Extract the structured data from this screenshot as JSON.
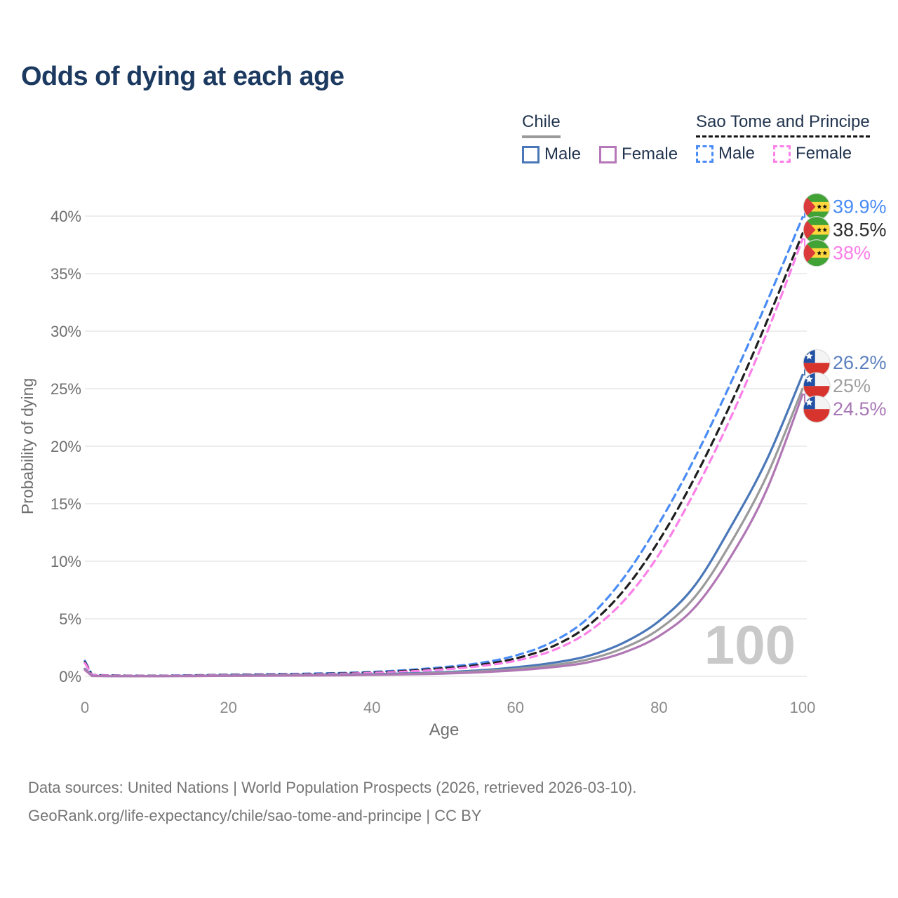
{
  "title": "Odds of dying at each age",
  "legend": {
    "groups": [
      {
        "id": "chile",
        "title": "Chile",
        "underline": "solid",
        "underline_color": "#9a9a9a",
        "items": [
          {
            "label": "Male",
            "color": "#4a77b8",
            "dash": false
          },
          {
            "label": "Female",
            "color": "#b678b8",
            "dash": false
          }
        ]
      },
      {
        "id": "sao-tome-and-principe",
        "title": "Sao Tome and Principe",
        "underline": "dashed",
        "underline_color": "#141414",
        "items": [
          {
            "label": "Male",
            "color": "#4a8cf5",
            "dash": true
          },
          {
            "label": "Female",
            "color": "#fb80e8",
            "dash": true
          }
        ]
      }
    ]
  },
  "watermark": "100",
  "footer": {
    "line1": "Data sources: United Nations | World Population Prospects (2026, retrieved 2026-03-10).",
    "line2": "GeoRank.org/life-expectancy/chile/sao-tome-and-principe | CC BY"
  },
  "chart_data": {
    "type": "line",
    "title": "Odds of dying at each age",
    "xlabel": "Age",
    "ylabel": "Probability of dying",
    "xlim": [
      0,
      100
    ],
    "ylim_percent": [
      0,
      40
    ],
    "grid": "horizontal",
    "x_ticks": [
      {
        "v": 0,
        "label": "0"
      },
      {
        "v": 20,
        "label": "20"
      },
      {
        "v": 40,
        "label": "40"
      },
      {
        "v": 60,
        "label": "60"
      },
      {
        "v": 80,
        "label": "80"
      },
      {
        "v": 100,
        "label": "100"
      }
    ],
    "y_ticks": [
      {
        "v": 0,
        "label": "0%"
      },
      {
        "v": 5,
        "label": "5%"
      },
      {
        "v": 10,
        "label": "10%"
      },
      {
        "v": 15,
        "label": "15%"
      },
      {
        "v": 20,
        "label": "20%"
      },
      {
        "v": 25,
        "label": "25%"
      },
      {
        "v": 30,
        "label": "30%"
      },
      {
        "v": 35,
        "label": "35%"
      },
      {
        "v": 40,
        "label": "40%"
      }
    ],
    "series": [
      {
        "name": "Sao Tome and Principe — Male",
        "country": "Sao Tome and Principe",
        "sex": "male",
        "style": "dashed",
        "color": "#4a8cf5",
        "flag": "sao-tome-and-principe",
        "end_label": "39.9%",
        "end_label_color": "#4a8cf5",
        "points": [
          [
            0,
            1.35
          ],
          [
            1,
            0.12
          ],
          [
            5,
            0.07
          ],
          [
            10,
            0.06
          ],
          [
            15,
            0.09
          ],
          [
            20,
            0.14
          ],
          [
            25,
            0.18
          ],
          [
            30,
            0.22
          ],
          [
            35,
            0.28
          ],
          [
            40,
            0.38
          ],
          [
            45,
            0.55
          ],
          [
            50,
            0.8
          ],
          [
            55,
            1.15
          ],
          [
            60,
            1.8
          ],
          [
            65,
            2.95
          ],
          [
            70,
            5.0
          ],
          [
            75,
            8.5
          ],
          [
            80,
            13.3
          ],
          [
            85,
            19.0
          ],
          [
            90,
            25.5
          ],
          [
            95,
            32.5
          ],
          [
            100,
            39.9
          ]
        ]
      },
      {
        "name": "Sao Tome and Principe — Both sexes",
        "country": "Sao Tome and Principe",
        "sex": "both",
        "style": "dashed",
        "color": "#1f1f1f",
        "flag": "sao-tome-and-principe",
        "end_label": "38.5%",
        "end_label_color": "#2e2e2e",
        "points": [
          [
            0,
            1.25
          ],
          [
            1,
            0.11
          ],
          [
            5,
            0.06
          ],
          [
            10,
            0.05
          ],
          [
            15,
            0.08
          ],
          [
            20,
            0.12
          ],
          [
            25,
            0.15
          ],
          [
            30,
            0.19
          ],
          [
            35,
            0.24
          ],
          [
            40,
            0.33
          ],
          [
            45,
            0.48
          ],
          [
            50,
            0.7
          ],
          [
            55,
            1.0
          ],
          [
            60,
            1.55
          ],
          [
            65,
            2.55
          ],
          [
            70,
            4.35
          ],
          [
            75,
            7.4
          ],
          [
            80,
            11.8
          ],
          [
            85,
            17.3
          ],
          [
            90,
            23.7
          ],
          [
            95,
            30.8
          ],
          [
            100,
            38.5
          ]
        ]
      },
      {
        "name": "Sao Tome and Principe — Female",
        "country": "Sao Tome and Principe",
        "sex": "female",
        "style": "dashed",
        "color": "#fb80e8",
        "flag": "sao-tome-and-principe",
        "end_label": "38%",
        "end_label_color": "#fb80e8",
        "points": [
          [
            0,
            1.15
          ],
          [
            1,
            0.1
          ],
          [
            5,
            0.05
          ],
          [
            10,
            0.045
          ],
          [
            15,
            0.07
          ],
          [
            20,
            0.1
          ],
          [
            25,
            0.13
          ],
          [
            30,
            0.16
          ],
          [
            35,
            0.21
          ],
          [
            40,
            0.29
          ],
          [
            45,
            0.42
          ],
          [
            50,
            0.6
          ],
          [
            55,
            0.88
          ],
          [
            60,
            1.35
          ],
          [
            65,
            2.2
          ],
          [
            70,
            3.8
          ],
          [
            75,
            6.5
          ],
          [
            80,
            10.6
          ],
          [
            85,
            16.1
          ],
          [
            90,
            22.5
          ],
          [
            95,
            29.8
          ],
          [
            100,
            38.0
          ]
        ]
      },
      {
        "name": "Chile — Male",
        "country": "Chile",
        "sex": "male",
        "style": "solid",
        "color": "#4a77b8",
        "flag": "chile",
        "end_label": "26.2%",
        "end_label_color": "#5b7fbe",
        "points": [
          [
            0,
            0.65
          ],
          [
            1,
            0.04
          ],
          [
            5,
            0.02
          ],
          [
            10,
            0.02
          ],
          [
            15,
            0.04
          ],
          [
            20,
            0.07
          ],
          [
            25,
            0.09
          ],
          [
            30,
            0.11
          ],
          [
            35,
            0.14
          ],
          [
            40,
            0.18
          ],
          [
            45,
            0.25
          ],
          [
            50,
            0.36
          ],
          [
            55,
            0.52
          ],
          [
            60,
            0.78
          ],
          [
            65,
            1.15
          ],
          [
            70,
            1.75
          ],
          [
            75,
            2.9
          ],
          [
            80,
            4.8
          ],
          [
            85,
            7.9
          ],
          [
            90,
            13.0
          ],
          [
            95,
            18.8
          ],
          [
            100,
            26.2
          ]
        ]
      },
      {
        "name": "Chile — Both sexes",
        "country": "Chile",
        "sex": "both",
        "style": "solid",
        "color": "#9a9a9a",
        "flag": "chile",
        "end_label": "25%",
        "end_label_color": "#9e9e9e",
        "points": [
          [
            0,
            0.6
          ],
          [
            1,
            0.035
          ],
          [
            5,
            0.018
          ],
          [
            10,
            0.018
          ],
          [
            15,
            0.03
          ],
          [
            20,
            0.055
          ],
          [
            25,
            0.07
          ],
          [
            30,
            0.09
          ],
          [
            35,
            0.11
          ],
          [
            40,
            0.15
          ],
          [
            45,
            0.21
          ],
          [
            50,
            0.3
          ],
          [
            55,
            0.43
          ],
          [
            60,
            0.64
          ],
          [
            65,
            0.95
          ],
          [
            70,
            1.45
          ],
          [
            75,
            2.45
          ],
          [
            80,
            4.1
          ],
          [
            85,
            6.9
          ],
          [
            90,
            11.6
          ],
          [
            95,
            17.4
          ],
          [
            100,
            25.0
          ]
        ]
      },
      {
        "name": "Chile — Female",
        "country": "Chile",
        "sex": "female",
        "style": "solid",
        "color": "#b077b4",
        "flag": "chile",
        "end_label": "24.5%",
        "end_label_color": "#a877b5",
        "points": [
          [
            0,
            0.55
          ],
          [
            1,
            0.03
          ],
          [
            5,
            0.015
          ],
          [
            10,
            0.015
          ],
          [
            15,
            0.025
          ],
          [
            20,
            0.04
          ],
          [
            25,
            0.05
          ],
          [
            30,
            0.065
          ],
          [
            35,
            0.085
          ],
          [
            40,
            0.12
          ],
          [
            45,
            0.17
          ],
          [
            50,
            0.24
          ],
          [
            55,
            0.35
          ],
          [
            60,
            0.52
          ],
          [
            65,
            0.78
          ],
          [
            70,
            1.2
          ],
          [
            75,
            2.05
          ],
          [
            80,
            3.5
          ],
          [
            85,
            6.0
          ],
          [
            90,
            10.4
          ],
          [
            95,
            16.2
          ],
          [
            100,
            24.5
          ]
        ]
      }
    ]
  }
}
